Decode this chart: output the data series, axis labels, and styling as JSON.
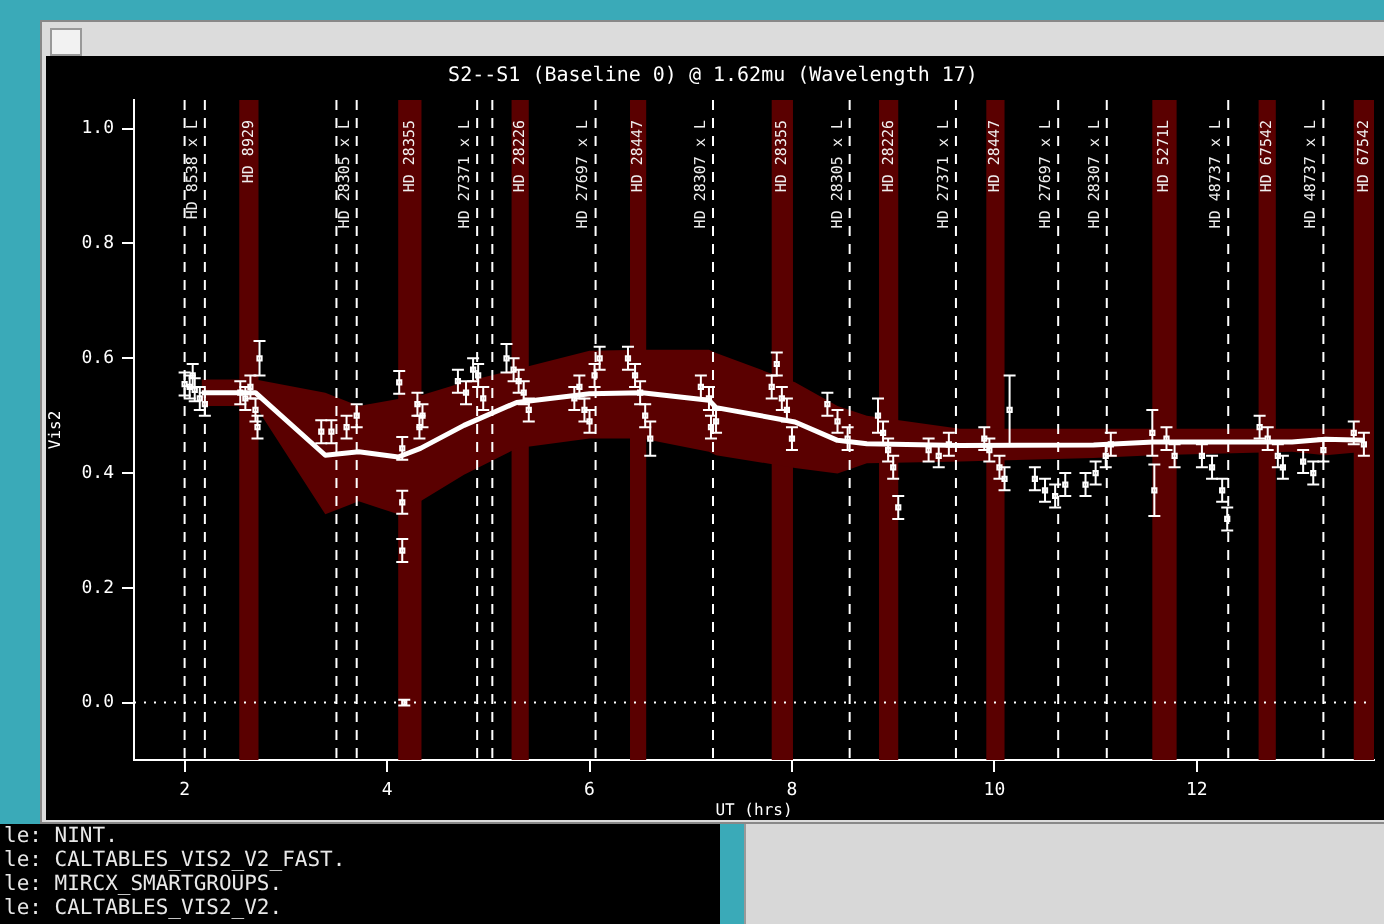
{
  "chart_data": {
    "type": "scatter",
    "title": "S2--S1 (Baseline 0) @ 1.62mu (Wavelength 17)",
    "xlabel": "UT (hrs)",
    "ylabel": "Vis2",
    "xlim": [
      1.5,
      13.75
    ],
    "xticks": [
      2,
      4,
      6,
      8,
      10,
      12
    ],
    "ylim": [
      -0.1,
      1.05
    ],
    "yticks": [
      {
        "value": 0,
        "label": "0.0"
      },
      {
        "value": 0.2,
        "label": "0.2"
      },
      {
        "value": 0.4,
        "label": "0.4"
      },
      {
        "value": 0.6,
        "label": "0.6"
      },
      {
        "value": 0.8,
        "label": "0.8"
      },
      {
        "value": 1,
        "label": "1.0"
      }
    ],
    "grid": false,
    "legend": false,
    "marker": "square",
    "series": [
      {
        "type": "line",
        "marker": "none",
        "color": "#ffffff",
        "x": [
          2.17,
          2.7,
          3.39,
          3.72,
          4.11,
          4.33,
          4.76,
          5.28,
          6.0,
          6.52,
          7.18,
          7.25,
          8.03,
          8.45,
          8.74,
          9.66,
          10.98,
          11.57,
          12.94,
          13.27,
          13.66
        ],
        "values": [
          0.54,
          0.54,
          0.431,
          0.437,
          0.428,
          0.443,
          0.483,
          0.523,
          0.538,
          0.54,
          0.527,
          0.514,
          0.489,
          0.457,
          0.451,
          0.448,
          0.449,
          0.454,
          0.454,
          0.459,
          0.457
        ],
        "lower": [
          0.517,
          0.517,
          0.328,
          0.351,
          0.328,
          0.351,
          0.397,
          0.443,
          0.46,
          0.46,
          0.437,
          0.431,
          0.409,
          0.399,
          0.417,
          0.42,
          0.426,
          0.431,
          0.437,
          0.431,
          0.437
        ],
        "upper": [
          0.563,
          0.563,
          0.54,
          0.517,
          0.529,
          0.535,
          0.558,
          0.581,
          0.613,
          0.615,
          0.615,
          0.609,
          0.558,
          0.517,
          0.5,
          0.477,
          0.477,
          0.477,
          0.477,
          0.477,
          0.477
        ]
      },
      {
        "type": "scatter",
        "color": "#ffffff",
        "x": [
          2.0,
          2.05,
          2.08,
          2.1,
          2.15,
          2.2,
          2.55,
          2.6,
          2.65,
          2.7,
          2.72,
          2.74,
          3.35,
          3.45,
          3.6,
          3.7,
          4.12,
          4.15,
          4.15,
          4.15,
          4.17,
          4.3,
          4.32,
          4.35,
          4.7,
          4.78,
          4.85,
          4.9,
          4.95,
          5.18,
          5.25,
          5.3,
          5.35,
          5.4,
          5.85,
          5.9,
          5.95,
          6.0,
          6.05,
          6.1,
          6.38,
          6.45,
          6.5,
          6.55,
          6.6,
          7.1,
          7.18,
          7.2,
          7.25,
          7.8,
          7.85,
          7.9,
          7.95,
          8.0,
          8.35,
          8.45,
          8.55,
          8.85,
          8.9,
          8.95,
          9.0,
          9.05,
          9.35,
          9.45,
          9.55,
          9.9,
          9.95,
          10.05,
          10.1,
          10.15,
          10.4,
          10.5,
          10.6,
          10.7,
          10.9,
          11.0,
          11.1,
          11.15,
          11.56,
          11.58,
          11.7,
          11.78,
          12.05,
          12.15,
          12.25,
          12.3,
          12.62,
          12.7,
          12.8,
          12.85,
          13.05,
          13.15,
          13.25,
          13.55,
          13.65
        ],
        "values": [
          0.555,
          0.55,
          0.57,
          0.545,
          0.53,
          0.52,
          0.54,
          0.53,
          0.55,
          0.51,
          0.48,
          0.6,
          0.472,
          0.472,
          0.48,
          0.5,
          0.558,
          0.443,
          0.349,
          0.265,
          0.0,
          0.52,
          0.48,
          0.5,
          0.56,
          0.54,
          0.58,
          0.57,
          0.53,
          0.6,
          0.58,
          0.56,
          0.54,
          0.51,
          0.53,
          0.55,
          0.51,
          0.49,
          0.57,
          0.6,
          0.6,
          0.57,
          0.54,
          0.5,
          0.46,
          0.55,
          0.53,
          0.48,
          0.49,
          0.55,
          0.59,
          0.53,
          0.51,
          0.46,
          0.52,
          0.49,
          0.46,
          0.5,
          0.47,
          0.44,
          0.41,
          0.34,
          0.44,
          0.43,
          0.45,
          0.46,
          0.44,
          0.41,
          0.39,
          0.51,
          0.39,
          0.37,
          0.36,
          0.38,
          0.38,
          0.4,
          0.43,
          0.45,
          0.47,
          0.37,
          0.46,
          0.43,
          0.43,
          0.41,
          0.37,
          0.32,
          0.48,
          0.46,
          0.43,
          0.41,
          0.42,
          0.4,
          0.44,
          0.47,
          0.45
        ],
        "errors": [
          0.02,
          0.02,
          0.02,
          0.02,
          0.02,
          0.02,
          0.02,
          0.02,
          0.02,
          0.02,
          0.02,
          0.03,
          0.02,
          0.02,
          0.02,
          0.02,
          0.02,
          0.02,
          0.02,
          0.02,
          0.005,
          0.02,
          0.02,
          0.02,
          0.02,
          0.02,
          0.02,
          0.02,
          0.02,
          0.025,
          0.02,
          0.02,
          0.02,
          0.02,
          0.02,
          0.02,
          0.02,
          0.02,
          0.02,
          0.02,
          0.02,
          0.02,
          0.02,
          0.02,
          0.03,
          0.02,
          0.02,
          0.02,
          0.02,
          0.02,
          0.02,
          0.02,
          0.02,
          0.02,
          0.02,
          0.02,
          0.02,
          0.03,
          0.02,
          0.02,
          0.02,
          0.02,
          0.02,
          0.02,
          0.02,
          0.02,
          0.02,
          0.02,
          0.02,
          0.06,
          0.02,
          0.02,
          0.02,
          0.02,
          0.02,
          0.02,
          0.02,
          0.02,
          0.04,
          0.045,
          0.02,
          0.02,
          0.02,
          0.02,
          0.02,
          0.02,
          0.02,
          0.02,
          0.02,
          0.02,
          0.02,
          0.02,
          0.02,
          0.02,
          0.02
        ]
      }
    ],
    "ref_lines": [
      {
        "axis": "x",
        "value": 2.0,
        "line_style": "dashed"
      },
      {
        "axis": "x",
        "value": 2.2,
        "label": "HD 8538 x L",
        "line_style": "dashed"
      },
      {
        "axis": "x",
        "value": 3.5,
        "line_style": "dashed"
      },
      {
        "axis": "x",
        "value": 3.7,
        "label": "HD 28305 x L",
        "line_style": "dashed"
      },
      {
        "axis": "x",
        "value": 4.89,
        "label": "HD 27371 x L",
        "line_style": "dashed"
      },
      {
        "axis": "x",
        "value": 5.04,
        "line_style": "dashed"
      },
      {
        "axis": "x",
        "value": 6.06,
        "label": "HD 27697 x L",
        "line_style": "dashed"
      },
      {
        "axis": "x",
        "value": 7.22,
        "label": "HD 28307 x L",
        "line_style": "dashed"
      },
      {
        "axis": "x",
        "value": 8.57,
        "label": "HD 28305 x L",
        "line_style": "dashed"
      },
      {
        "axis": "x",
        "value": 9.62,
        "label": "HD 27371 x L",
        "line_style": "dashed"
      },
      {
        "axis": "x",
        "value": 10.63,
        "label": "HD 27697 x L",
        "line_style": "dashed"
      },
      {
        "axis": "x",
        "value": 11.11,
        "label": "HD 28307 x L",
        "line_style": "dashed"
      },
      {
        "axis": "x",
        "value": 12.31,
        "label": "HD 48737 x L",
        "line_style": "dashed"
      },
      {
        "axis": "x",
        "value": 13.25,
        "label": "HD 48737 x L",
        "line_style": "dashed"
      },
      {
        "axis": "y",
        "value": 0,
        "line_style": "dotted"
      }
    ],
    "bands": [
      {
        "axis": "x",
        "from": 2.54,
        "to": 2.73,
        "label": "HD 8929",
        "color": "#5a0000"
      },
      {
        "axis": "x",
        "from": 4.11,
        "to": 4.34,
        "label": "HD 28355",
        "color": "#5a0000"
      },
      {
        "axis": "x",
        "from": 5.23,
        "to": 5.4,
        "label": "HD 28226",
        "color": "#5a0000"
      },
      {
        "axis": "x",
        "from": 6.4,
        "to": 6.56,
        "label": "HD 28447",
        "color": "#5a0000"
      },
      {
        "axis": "x",
        "from": 7.8,
        "to": 8.01,
        "label": "HD 28355",
        "color": "#5a0000"
      },
      {
        "axis": "x",
        "from": 8.86,
        "to": 9.05,
        "label": "HD 28226",
        "color": "#5a0000"
      },
      {
        "axis": "x",
        "from": 9.92,
        "to": 10.1,
        "label": "HD 28447",
        "color": "#5a0000"
      },
      {
        "axis": "x",
        "from": 11.56,
        "to": 11.8,
        "label": "HD 5271L",
        "color": "#5a0000"
      },
      {
        "axis": "x",
        "from": 12.61,
        "to": 12.78,
        "label": "HD 67542",
        "color": "#5a0000"
      },
      {
        "axis": "x",
        "from": 13.55,
        "to": 13.75,
        "label": "HD 67542",
        "color": "#5a0000"
      }
    ],
    "annotations": [
      "le: NINT.",
      "le: CALTABLES_VIS2_V2_FAST.",
      "le: MIRCX_SMARTGROUPS.",
      "le: CALTABLES_VIS2_V2."
    ]
  }
}
